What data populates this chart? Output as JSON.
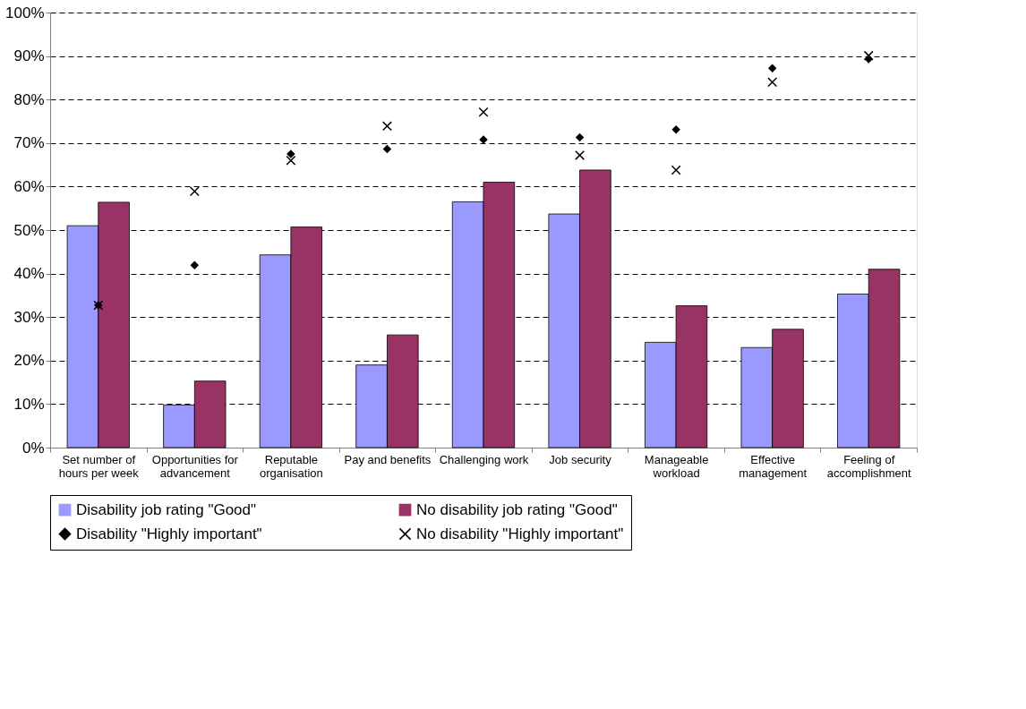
{
  "chart_data": {
    "type": "bar",
    "categories": [
      "Set number of hours per week",
      "Opportunities for advancement",
      "Reputable organisation",
      "Pay and benefits",
      "Challenging work",
      "Job security",
      "Manageable workload",
      "Effective management",
      "Feeling of accomplishment"
    ],
    "series": [
      {
        "name": "Disability job rating \"Good\"",
        "color": "#9999ff",
        "values": [
          51.0,
          9.8,
          44.3,
          19.0,
          56.5,
          53.7,
          24.2,
          23.0,
          35.3
        ]
      },
      {
        "name": "No disability job rating \"Good\"",
        "color": "#993366",
        "values": [
          56.4,
          15.3,
          50.7,
          25.9,
          61.0,
          63.8,
          32.6,
          27.2,
          41.0
        ]
      },
      {
        "name": "Disability \"Highly important\"",
        "type": "scatter",
        "marker": "diamond",
        "color": "#000000",
        "x": [
          "Set number of hours per week",
          "Opportunities for advancement",
          "Reputable organisation",
          "Pay and benefits",
          "Challenging work",
          "Job security",
          "Manageable workload",
          "Effective management",
          "Feeling of accomplishment"
        ],
        "values": [
          32.7,
          41.9,
          67.5,
          68.6,
          70.8,
          71.3,
          73.1,
          87.2,
          89.3
        ]
      },
      {
        "name": "No disability \"Highly important\"",
        "type": "scatter",
        "marker": "cross",
        "color": "#000000",
        "x": [
          "Set number of hours per week",
          "Opportunities for advancement",
          "Reputable organisation",
          "Pay and benefits",
          "Challenging work",
          "Job security",
          "Manageable workload",
          "Effective management",
          "Feeling of accomplishment"
        ],
        "values": [
          32.7,
          58.9,
          66.0,
          73.9,
          77.1,
          67.2,
          63.8,
          84.0,
          90.1
        ]
      }
    ],
    "ylim": [
      0,
      100
    ],
    "yticks": [
      {
        "value": 0,
        "label": "0%"
      },
      {
        "value": 10,
        "label": "10%"
      },
      {
        "value": 20,
        "label": "20%"
      },
      {
        "value": 30,
        "label": "30%"
      },
      {
        "value": 40,
        "label": "40%"
      },
      {
        "value": 50,
        "label": "50%"
      },
      {
        "value": 60,
        "label": "60%"
      },
      {
        "value": 70,
        "label": "70%"
      },
      {
        "value": 80,
        "label": "80%"
      },
      {
        "value": 90,
        "label": "90%"
      },
      {
        "value": 100,
        "label": "100%"
      }
    ],
    "grid": "y",
    "legend": "bottom"
  }
}
